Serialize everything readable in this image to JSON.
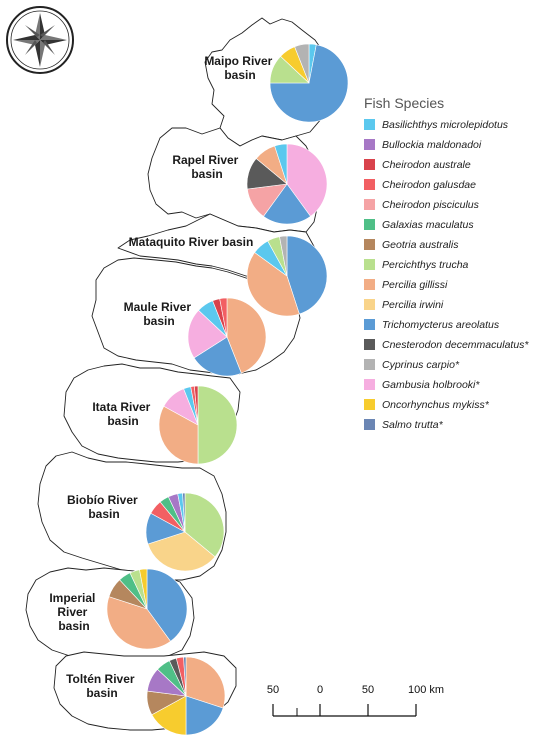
{
  "legend": {
    "title": "Fish Species",
    "species": [
      {
        "name": "Basilichthys microlepidotus",
        "color": "#5bc8ee"
      },
      {
        "name": "Bullockia maldonadoi",
        "color": "#a778c6"
      },
      {
        "name": "Cheirodon australe",
        "color": "#d9434c"
      },
      {
        "name": "Cheirodon galusdae",
        "color": "#f25f63"
      },
      {
        "name": "Cheirodon pisciculus",
        "color": "#f5a3a5"
      },
      {
        "name": "Galaxias maculatus",
        "color": "#4fbf87"
      },
      {
        "name": "Geotria australis",
        "color": "#b5875e"
      },
      {
        "name": "Percichthys trucha",
        "color": "#b9e08e"
      },
      {
        "name": "Percilia gillissi",
        "color": "#f2ad85"
      },
      {
        "name": "Percilia irwini",
        "color": "#f9d48a"
      },
      {
        "name": "Trichomycterus areolatus",
        "color": "#5b9bd5"
      },
      {
        "name": "Cnesterodon decemmaculatus*",
        "color": "#5a5a5a"
      },
      {
        "name": "Cyprinus carpio*",
        "color": "#b3b3b3"
      },
      {
        "name": "Gambusia holbrooki*",
        "color": "#f6aee0"
      },
      {
        "name": "Oncorhynchus mykiss*",
        "color": "#f7cc2e"
      },
      {
        "name": "Salmo trutta*",
        "color": "#6b86b4"
      }
    ]
  },
  "basins": [
    {
      "label": [
        "Maipo River",
        "basin"
      ],
      "pie": [
        {
          "species": 0,
          "value": 3
        },
        {
          "species": 10,
          "value": 72
        },
        {
          "species": 7,
          "value": 12
        },
        {
          "species": 14,
          "value": 7
        },
        {
          "species": 12,
          "value": 6
        }
      ]
    },
    {
      "label": [
        "Rapel River",
        "basin"
      ],
      "pie": [
        {
          "species": 13,
          "value": 40
        },
        {
          "species": 10,
          "value": 20
        },
        {
          "species": 4,
          "value": 13
        },
        {
          "species": 11,
          "value": 13
        },
        {
          "species": 8,
          "value": 9
        },
        {
          "species": 0,
          "value": 5
        }
      ]
    },
    {
      "label": [
        "Mataquito River basin"
      ],
      "pie": [
        {
          "species": 10,
          "value": 45
        },
        {
          "species": 8,
          "value": 40
        },
        {
          "species": 0,
          "value": 7
        },
        {
          "species": 7,
          "value": 5
        },
        {
          "species": 12,
          "value": 3
        }
      ]
    },
    {
      "label": [
        "Maule River",
        "basin"
      ],
      "pie": [
        {
          "species": 8,
          "value": 44
        },
        {
          "species": 10,
          "value": 22
        },
        {
          "species": 13,
          "value": 21
        },
        {
          "species": 0,
          "value": 7
        },
        {
          "species": 2,
          "value": 3
        },
        {
          "species": 3,
          "value": 3
        }
      ]
    },
    {
      "label": [
        "Itata River",
        "basin"
      ],
      "pie": [
        {
          "species": 7,
          "value": 50
        },
        {
          "species": 8,
          "value": 33
        },
        {
          "species": 13,
          "value": 11
        },
        {
          "species": 0,
          "value": 3
        },
        {
          "species": 3,
          "value": 1.5
        },
        {
          "species": 2,
          "value": 1.5
        }
      ]
    },
    {
      "label": [
        "Biobío River",
        "basin"
      ],
      "pie": [
        {
          "species": 7,
          "value": 36
        },
        {
          "species": 9,
          "value": 34
        },
        {
          "species": 10,
          "value": 13
        },
        {
          "species": 3,
          "value": 6
        },
        {
          "species": 5,
          "value": 4
        },
        {
          "species": 1,
          "value": 4
        },
        {
          "species": 0,
          "value": 2
        },
        {
          "species": 15,
          "value": 1
        }
      ]
    },
    {
      "label": [
        "Imperial",
        "River",
        "basin"
      ],
      "pie": [
        {
          "species": 10,
          "value": 40
        },
        {
          "species": 8,
          "value": 40
        },
        {
          "species": 6,
          "value": 8
        },
        {
          "species": 5,
          "value": 5
        },
        {
          "species": 7,
          "value": 4
        },
        {
          "species": 14,
          "value": 3
        }
      ]
    },
    {
      "label": [
        "Toltén River",
        "basin"
      ],
      "pie": [
        {
          "species": 8,
          "value": 30
        },
        {
          "species": 10,
          "value": 20
        },
        {
          "species": 14,
          "value": 17
        },
        {
          "species": 6,
          "value": 10
        },
        {
          "species": 1,
          "value": 10
        },
        {
          "species": 5,
          "value": 6
        },
        {
          "species": 11,
          "value": 3
        },
        {
          "species": 3,
          "value": 3
        },
        {
          "species": 15,
          "value": 1
        }
      ]
    }
  ],
  "scale_bar": {
    "labels": [
      "50",
      "0",
      "50",
      "100 km"
    ]
  }
}
